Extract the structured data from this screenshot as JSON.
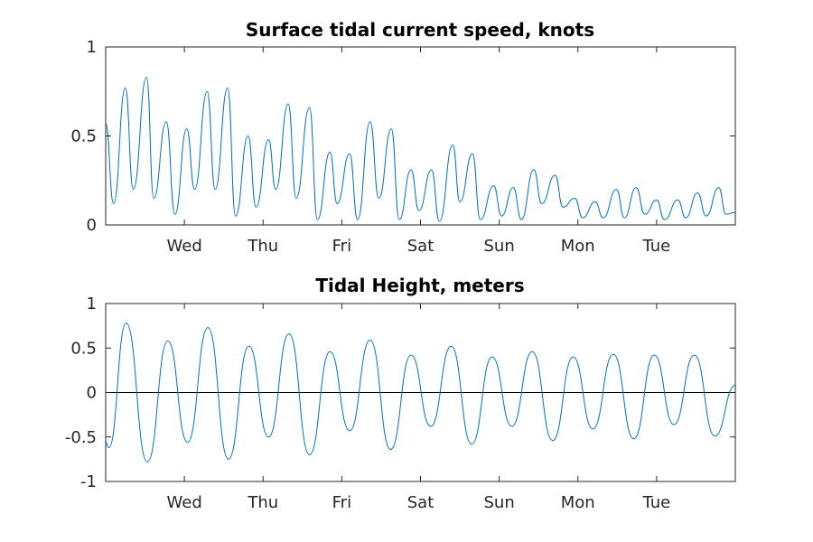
{
  "chart_data": [
    {
      "type": "line",
      "title": "Surface tidal current speed, knots",
      "xlabel": "",
      "ylabel": "",
      "ylim": [
        0,
        1
      ],
      "yticks": [
        0,
        0.5,
        1
      ],
      "ytick_labels": [
        "0",
        "0.5",
        "1"
      ],
      "xlim": [
        0,
        8
      ],
      "xticks": [
        1,
        2,
        3,
        4,
        5,
        6,
        7
      ],
      "xtick_labels": [
        "Wed",
        "Thu",
        "Fri",
        "Sat",
        "Sun",
        "Mon",
        "Tue"
      ],
      "x_units": "days",
      "grid": false,
      "zero_line": false,
      "series": [
        {
          "color": "#0072BD",
          "x": [
            0.0,
            0.1,
            0.25,
            0.35,
            0.52,
            0.61,
            0.77,
            0.88,
            1.03,
            1.13,
            1.29,
            1.39,
            1.55,
            1.65,
            1.81,
            1.91,
            2.07,
            2.16,
            2.32,
            2.42,
            2.59,
            2.69,
            2.85,
            2.94,
            3.1,
            3.2,
            3.36,
            3.47,
            3.63,
            3.73,
            3.88,
            3.98,
            4.14,
            4.24,
            4.41,
            4.5,
            4.66,
            4.76,
            4.93,
            5.03,
            5.18,
            5.28,
            5.44,
            5.54,
            5.71,
            5.81,
            5.96,
            6.06,
            6.22,
            6.32,
            6.49,
            6.59,
            6.74,
            6.85,
            7.0,
            7.1,
            7.27,
            7.37,
            7.52,
            7.63,
            7.79,
            7.88,
            8.0
          ],
          "y": [
            0.57,
            0.12,
            0.77,
            0.2,
            0.83,
            0.15,
            0.58,
            0.06,
            0.54,
            0.2,
            0.75,
            0.2,
            0.77,
            0.05,
            0.5,
            0.1,
            0.48,
            0.2,
            0.68,
            0.15,
            0.66,
            0.03,
            0.41,
            0.12,
            0.4,
            0.03,
            0.58,
            0.15,
            0.54,
            0.03,
            0.31,
            0.08,
            0.31,
            0.02,
            0.45,
            0.13,
            0.4,
            0.03,
            0.22,
            0.05,
            0.21,
            0.03,
            0.31,
            0.12,
            0.28,
            0.1,
            0.15,
            0.04,
            0.13,
            0.04,
            0.2,
            0.04,
            0.21,
            0.06,
            0.14,
            0.03,
            0.14,
            0.04,
            0.18,
            0.05,
            0.21,
            0.06,
            0.07
          ]
        }
      ]
    },
    {
      "type": "line",
      "title": "Tidal Height, meters",
      "xlabel": "",
      "ylabel": "",
      "ylim": [
        -1,
        1
      ],
      "yticks": [
        -1,
        -0.5,
        0,
        0.5,
        1
      ],
      "ytick_labels": [
        "-1",
        "-0.5",
        "0",
        "0.5",
        "1"
      ],
      "xlim": [
        0,
        8
      ],
      "xticks": [
        1,
        2,
        3,
        4,
        5,
        6,
        7
      ],
      "xtick_labels": [
        "Wed",
        "Thu",
        "Fri",
        "Sat",
        "Sun",
        "Mon",
        "Tue"
      ],
      "x_units": "days",
      "grid": false,
      "zero_line": true,
      "series": [
        {
          "color": "#0072BD",
          "x": [
            0.0,
            0.04,
            0.26,
            0.53,
            0.79,
            1.04,
            1.3,
            1.56,
            1.82,
            2.07,
            2.33,
            2.59,
            2.85,
            3.1,
            3.36,
            3.62,
            3.88,
            4.13,
            4.39,
            4.65,
            4.91,
            5.16,
            5.42,
            5.68,
            5.94,
            6.19,
            6.45,
            6.71,
            6.97,
            7.22,
            7.48,
            7.74,
            8.0
          ],
          "y": [
            -0.56,
            -0.62,
            0.78,
            -0.78,
            0.58,
            -0.56,
            0.73,
            -0.75,
            0.52,
            -0.5,
            0.66,
            -0.7,
            0.46,
            -0.43,
            0.59,
            -0.64,
            0.42,
            -0.38,
            0.52,
            -0.58,
            0.4,
            -0.38,
            0.46,
            -0.54,
            0.4,
            -0.41,
            0.43,
            -0.52,
            0.42,
            -0.36,
            0.42,
            -0.49,
            0.08
          ]
        }
      ]
    }
  ]
}
